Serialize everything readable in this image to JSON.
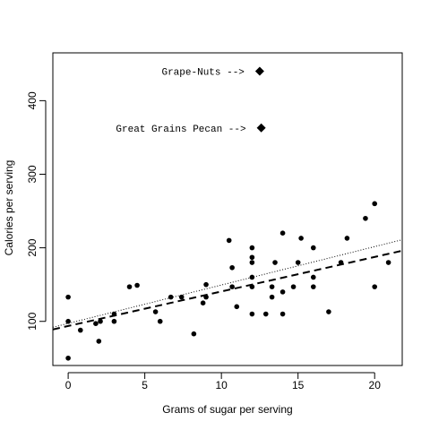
{
  "chart_data": {
    "type": "scatter",
    "xlabel": "Grams of sugar per serving",
    "ylabel": "Calories per serving",
    "xlim": [
      -1,
      21.8
    ],
    "ylim": [
      40,
      465
    ],
    "xticks": [
      0,
      5,
      10,
      15,
      20
    ],
    "yticks": [
      100,
      200,
      300,
      400
    ],
    "grid": false,
    "legend": "none",
    "points": [
      {
        "x": 0,
        "y": 50
      },
      {
        "x": 0,
        "y": 100
      },
      {
        "x": 0,
        "y": 133
      },
      {
        "x": 0.8,
        "y": 88
      },
      {
        "x": 1.8,
        "y": 97
      },
      {
        "x": 2,
        "y": 73
      },
      {
        "x": 2.1,
        "y": 100
      },
      {
        "x": 3,
        "y": 100
      },
      {
        "x": 3,
        "y": 110
      },
      {
        "x": 4,
        "y": 147
      },
      {
        "x": 4.5,
        "y": 149
      },
      {
        "x": 5.7,
        "y": 113
      },
      {
        "x": 6,
        "y": 100
      },
      {
        "x": 6.7,
        "y": 133
      },
      {
        "x": 7.4,
        "y": 133
      },
      {
        "x": 8.2,
        "y": 83
      },
      {
        "x": 8.8,
        "y": 125
      },
      {
        "x": 9,
        "y": 133
      },
      {
        "x": 9,
        "y": 150
      },
      {
        "x": 10.5,
        "y": 210
      },
      {
        "x": 10.7,
        "y": 147
      },
      {
        "x": 10.7,
        "y": 173
      },
      {
        "x": 11,
        "y": 120
      },
      {
        "x": 12,
        "y": 110
      },
      {
        "x": 12,
        "y": 147
      },
      {
        "x": 12,
        "y": 160
      },
      {
        "x": 12,
        "y": 180
      },
      {
        "x": 12,
        "y": 187
      },
      {
        "x": 12,
        "y": 200
      },
      {
        "x": 12.9,
        "y": 110
      },
      {
        "x": 13.3,
        "y": 133
      },
      {
        "x": 13.3,
        "y": 147
      },
      {
        "x": 13.5,
        "y": 180
      },
      {
        "x": 14,
        "y": 110
      },
      {
        "x": 14,
        "y": 140
      },
      {
        "x": 14,
        "y": 220
      },
      {
        "x": 14.7,
        "y": 147
      },
      {
        "x": 15,
        "y": 180
      },
      {
        "x": 15.2,
        "y": 213
      },
      {
        "x": 16,
        "y": 147
      },
      {
        "x": 16,
        "y": 160
      },
      {
        "x": 16,
        "y": 200
      },
      {
        "x": 17,
        "y": 113
      },
      {
        "x": 17.8,
        "y": 180
      },
      {
        "x": 18.2,
        "y": 213
      },
      {
        "x": 19.4,
        "y": 240
      },
      {
        "x": 20,
        "y": 147
      },
      {
        "x": 20,
        "y": 260
      },
      {
        "x": 20.9,
        "y": 180
      }
    ],
    "highlighted_points": [
      {
        "label": "Grape-Nuts -->",
        "x": 12.5,
        "y": 440
      },
      {
        "label": "Great Grains Pecan -->",
        "x": 12.6,
        "y": 363
      }
    ],
    "lines": [
      {
        "style": "dotted",
        "x": [
          -1,
          21.8
        ],
        "y": [
          92,
          211
        ]
      },
      {
        "style": "dashed",
        "x": [
          -1,
          21.8
        ],
        "y": [
          89,
          196
        ]
      }
    ]
  }
}
